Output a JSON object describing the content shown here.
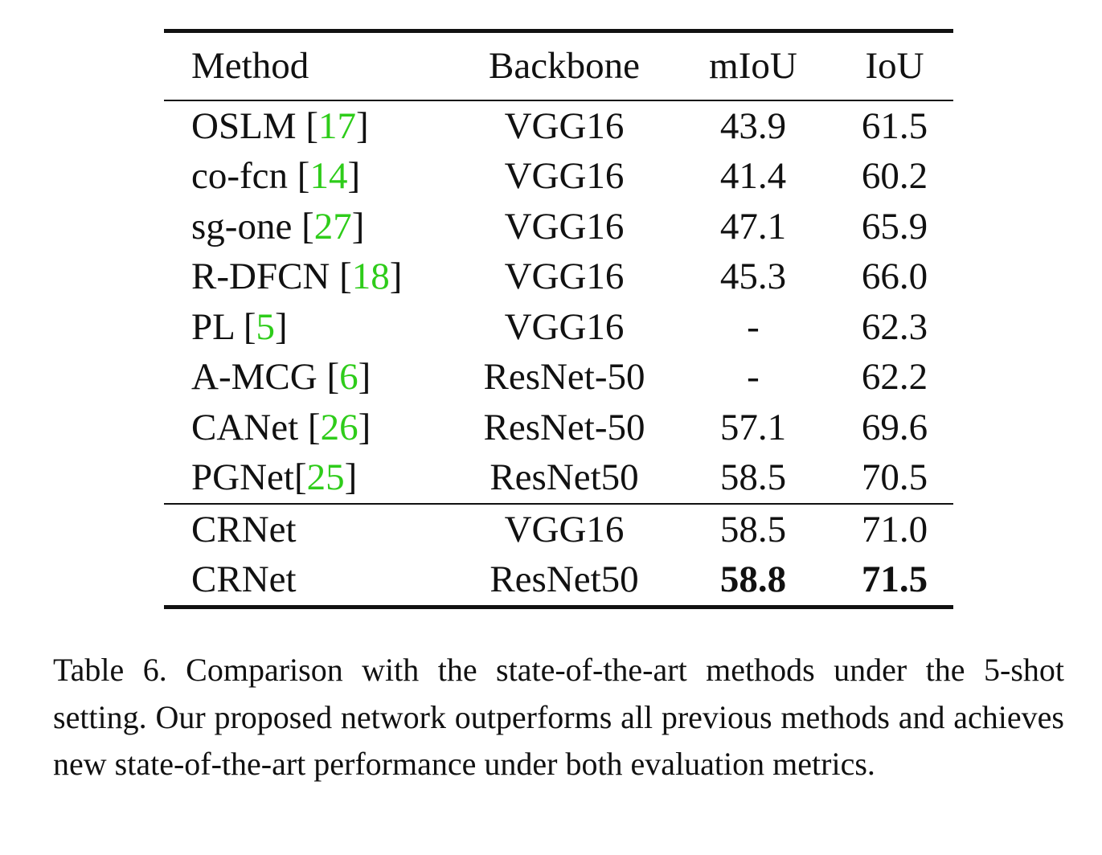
{
  "table": {
    "headers": [
      "Method",
      "Backbone",
      "mIoU",
      "IoU"
    ],
    "rows": [
      {
        "method": "OSLM",
        "cite": "17",
        "backbone": "VGG16",
        "miou": "43.9",
        "iou": "61.5"
      },
      {
        "method": "co-fcn",
        "cite": "14",
        "backbone": "VGG16",
        "miou": "41.4",
        "iou": "60.2"
      },
      {
        "method": "sg-one",
        "cite": "27",
        "backbone": "VGG16",
        "miou": "47.1",
        "iou": "65.9"
      },
      {
        "method": "R-DFCN",
        "cite": "18",
        "backbone": "VGG16",
        "miou": "45.3",
        "iou": "66.0"
      },
      {
        "method": "PL",
        "cite": "5",
        "backbone": "VGG16",
        "miou": "-",
        "iou": "62.3"
      },
      {
        "method": "A-MCG",
        "cite": "6",
        "backbone": "ResNet-50",
        "miou": "-",
        "iou": "62.2"
      },
      {
        "method": "CANet",
        "cite": "26",
        "backbone": "ResNet-50",
        "miou": "57.1",
        "iou": "69.6"
      },
      {
        "method": "PGNet",
        "cite": "25",
        "backbone": "ResNet50",
        "miou": "58.5",
        "iou": "70.5"
      }
    ],
    "ours": [
      {
        "method": "CRNet",
        "backbone": "VGG16",
        "miou": "58.5",
        "iou": "71.0"
      },
      {
        "method": "CRNet",
        "backbone": "ResNet50",
        "miou": "58.8",
        "iou": "71.5"
      }
    ],
    "citation_color": "#2ecc1a"
  },
  "caption": "Table 6. Comparison with the state-of-the-art methods under the 5-shot setting.  Our proposed network outperforms all previous methods and achieves new state-of-the-art performance under both evaluation metrics."
}
